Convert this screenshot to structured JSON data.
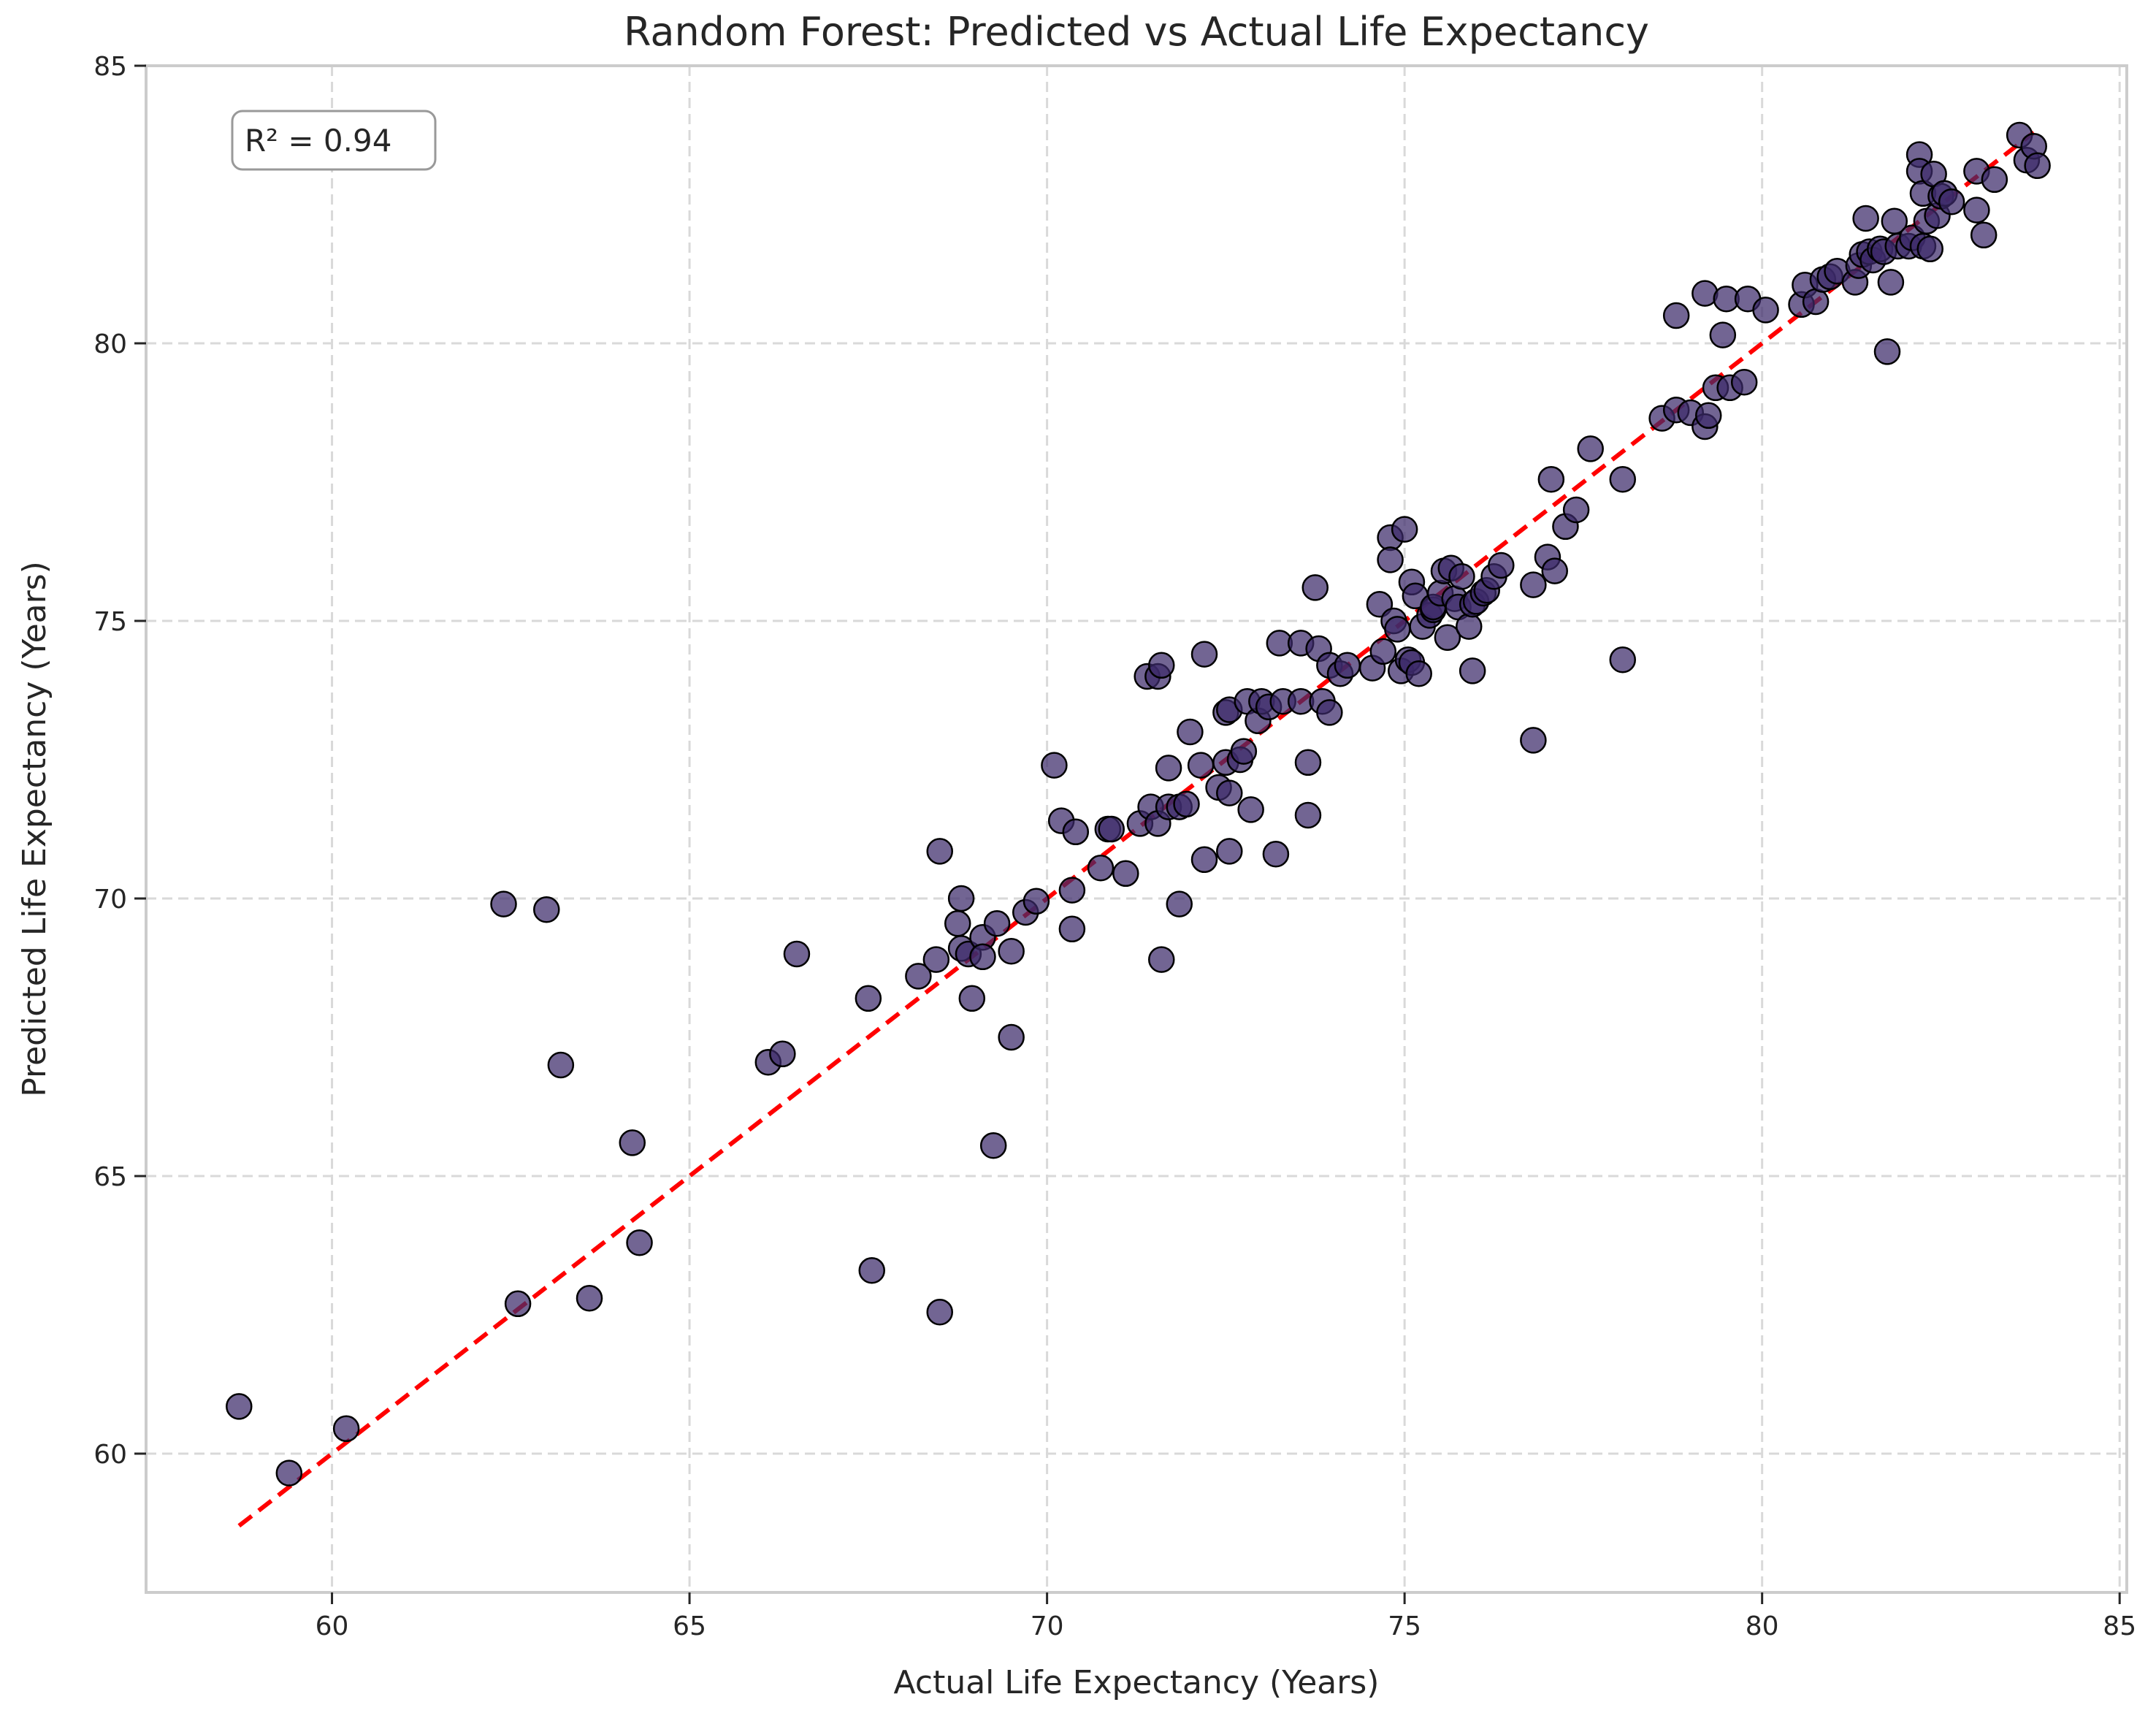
{
  "chart_data": {
    "type": "scatter",
    "title": "Random Forest: Predicted vs Actual Life Expectancy",
    "xlabel": "Actual Life Expectancy (Years)",
    "ylabel": "Predicted Life Expectancy (Years)",
    "xlim": [
      57.4,
      85.1
    ],
    "ylim": [
      57.5,
      85.0
    ],
    "xticks": [
      60,
      65,
      70,
      75,
      80,
      85
    ],
    "yticks": [
      60,
      65,
      70,
      75,
      80,
      85
    ],
    "grid": true,
    "annotation": "R² = 0.94",
    "annotation_position": "top-left",
    "point_color": "#3b2a6a",
    "point_edge_color": "#000000",
    "reference_line": {
      "style": "dashed",
      "color": "#ff0000",
      "x": [
        58.7,
        83.8
      ],
      "y": [
        58.7,
        83.8
      ]
    },
    "points": [
      [
        58.7,
        60.85
      ],
      [
        59.4,
        59.65
      ],
      [
        60.2,
        60.45
      ],
      [
        62.4,
        69.9
      ],
      [
        63.0,
        69.8
      ],
      [
        63.2,
        67.0
      ],
      [
        62.6,
        62.7
      ],
      [
        63.6,
        62.8
      ],
      [
        64.2,
        65.6
      ],
      [
        64.3,
        63.8
      ],
      [
        66.1,
        67.05
      ],
      [
        66.3,
        67.2
      ],
      [
        66.5,
        69.0
      ],
      [
        67.5,
        68.2
      ],
      [
        67.55,
        63.3
      ],
      [
        68.2,
        68.6
      ],
      [
        68.5,
        62.55
      ],
      [
        68.5,
        70.85
      ],
      [
        68.45,
        68.9
      ],
      [
        68.8,
        69.1
      ],
      [
        68.75,
        69.55
      ],
      [
        68.8,
        70.0
      ],
      [
        68.9,
        69.0
      ],
      [
        68.95,
        68.2
      ],
      [
        69.1,
        69.3
      ],
      [
        69.1,
        68.95
      ],
      [
        69.3,
        69.55
      ],
      [
        69.25,
        65.55
      ],
      [
        69.5,
        69.05
      ],
      [
        69.5,
        67.5
      ],
      [
        69.7,
        69.75
      ],
      [
        69.85,
        69.95
      ],
      [
        70.1,
        72.4
      ],
      [
        70.2,
        71.4
      ],
      [
        70.35,
        70.15
      ],
      [
        70.35,
        69.45
      ],
      [
        70.4,
        71.2
      ],
      [
        70.75,
        70.55
      ],
      [
        70.85,
        71.25
      ],
      [
        70.9,
        71.25
      ],
      [
        71.1,
        70.45
      ],
      [
        71.3,
        71.35
      ],
      [
        71.4,
        74.0
      ],
      [
        71.45,
        71.65
      ],
      [
        71.55,
        74.0
      ],
      [
        71.55,
        71.35
      ],
      [
        71.6,
        74.2
      ],
      [
        71.6,
        68.9
      ],
      [
        71.7,
        72.35
      ],
      [
        71.7,
        71.65
      ],
      [
        71.85,
        69.9
      ],
      [
        71.85,
        71.65
      ],
      [
        71.95,
        71.7
      ],
      [
        72.0,
        73.0
      ],
      [
        72.2,
        70.7
      ],
      [
        72.2,
        74.4
      ],
      [
        72.15,
        72.4
      ],
      [
        72.4,
        72.0
      ],
      [
        72.5,
        73.35
      ],
      [
        72.5,
        72.45
      ],
      [
        72.55,
        71.9
      ],
      [
        72.55,
        70.85
      ],
      [
        72.55,
        73.4
      ],
      [
        72.7,
        72.5
      ],
      [
        72.75,
        72.65
      ],
      [
        72.8,
        73.55
      ],
      [
        72.85,
        71.6
      ],
      [
        72.95,
        73.2
      ],
      [
        73.0,
        73.55
      ],
      [
        73.1,
        73.45
      ],
      [
        73.2,
        70.8
      ],
      [
        73.25,
        74.6
      ],
      [
        73.3,
        73.55
      ],
      [
        73.55,
        74.6
      ],
      [
        73.55,
        73.55
      ],
      [
        73.65,
        72.45
      ],
      [
        73.65,
        71.5
      ],
      [
        73.75,
        75.6
      ],
      [
        73.8,
        74.5
      ],
      [
        73.85,
        73.55
      ],
      [
        73.95,
        73.35
      ],
      [
        73.95,
        74.2
      ],
      [
        74.1,
        74.05
      ],
      [
        74.2,
        74.2
      ],
      [
        74.55,
        74.15
      ],
      [
        74.65,
        75.3
      ],
      [
        74.7,
        74.45
      ],
      [
        74.8,
        76.5
      ],
      [
        74.8,
        76.1
      ],
      [
        74.85,
        75.0
      ],
      [
        74.9,
        74.85
      ],
      [
        74.95,
        74.1
      ],
      [
        75.0,
        76.65
      ],
      [
        75.05,
        74.3
      ],
      [
        75.1,
        74.25
      ],
      [
        75.1,
        75.7
      ],
      [
        75.15,
        75.45
      ],
      [
        75.2,
        74.05
      ],
      [
        75.25,
        74.9
      ],
      [
        75.35,
        75.1
      ],
      [
        75.4,
        75.2
      ],
      [
        75.4,
        75.25
      ],
      [
        75.5,
        75.5
      ],
      [
        75.55,
        75.9
      ],
      [
        75.6,
        74.7
      ],
      [
        75.65,
        75.95
      ],
      [
        75.7,
        75.4
      ],
      [
        75.75,
        75.25
      ],
      [
        75.8,
        75.8
      ],
      [
        75.9,
        74.9
      ],
      [
        75.95,
        74.1
      ],
      [
        75.95,
        75.3
      ],
      [
        76.0,
        75.35
      ],
      [
        76.1,
        75.5
      ],
      [
        76.15,
        75.55
      ],
      [
        76.25,
        75.8
      ],
      [
        76.35,
        76.0
      ],
      [
        76.8,
        75.65
      ],
      [
        76.8,
        72.85
      ],
      [
        77.0,
        76.15
      ],
      [
        77.05,
        77.55
      ],
      [
        77.1,
        75.9
      ],
      [
        77.25,
        76.7
      ],
      [
        77.4,
        77.0
      ],
      [
        77.6,
        78.1
      ],
      [
        78.05,
        77.55
      ],
      [
        78.05,
        74.3
      ],
      [
        78.6,
        78.65
      ],
      [
        78.8,
        78.8
      ],
      [
        78.8,
        80.5
      ],
      [
        79.0,
        78.75
      ],
      [
        79.2,
        80.9
      ],
      [
        79.2,
        78.5
      ],
      [
        79.25,
        78.7
      ],
      [
        79.35,
        79.2
      ],
      [
        79.45,
        80.15
      ],
      [
        79.5,
        80.8
      ],
      [
        79.55,
        79.2
      ],
      [
        79.75,
        79.3
      ],
      [
        79.8,
        80.8
      ],
      [
        80.05,
        80.6
      ],
      [
        80.55,
        80.7
      ],
      [
        80.6,
        81.05
      ],
      [
        80.75,
        80.75
      ],
      [
        80.85,
        81.15
      ],
      [
        80.95,
        81.2
      ],
      [
        81.05,
        81.3
      ],
      [
        81.3,
        81.1
      ],
      [
        81.35,
        81.4
      ],
      [
        81.4,
        81.6
      ],
      [
        81.45,
        82.25
      ],
      [
        81.5,
        81.65
      ],
      [
        81.55,
        81.5
      ],
      [
        81.65,
        81.7
      ],
      [
        81.7,
        81.65
      ],
      [
        81.75,
        79.85
      ],
      [
        81.8,
        81.1
      ],
      [
        81.85,
        82.2
      ],
      [
        81.9,
        81.75
      ],
      [
        82.05,
        81.75
      ],
      [
        82.1,
        81.9
      ],
      [
        82.2,
        83.4
      ],
      [
        82.2,
        83.1
      ],
      [
        82.25,
        81.75
      ],
      [
        82.25,
        82.7
      ],
      [
        82.3,
        82.2
      ],
      [
        82.35,
        81.7
      ],
      [
        82.4,
        83.05
      ],
      [
        82.45,
        82.3
      ],
      [
        82.5,
        82.65
      ],
      [
        82.55,
        82.7
      ],
      [
        82.65,
        82.55
      ],
      [
        83.0,
        82.4
      ],
      [
        83.0,
        83.1
      ],
      [
        83.1,
        81.95
      ],
      [
        83.25,
        82.95
      ],
      [
        83.6,
        83.75
      ],
      [
        83.7,
        83.3
      ],
      [
        83.8,
        83.55
      ],
      [
        83.85,
        83.2
      ]
    ]
  }
}
